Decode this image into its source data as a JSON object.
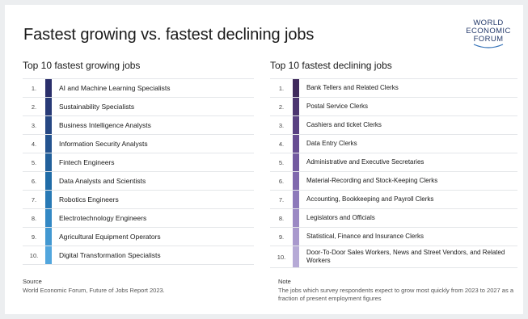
{
  "title": "Fastest growing vs. fastest declining jobs",
  "logo": {
    "line1": "WORLD",
    "line2": "ECONOMIC",
    "line3": "FORUM"
  },
  "growing": {
    "heading": "Top 10 fastest growing jobs",
    "items": [
      {
        "rank": "1.",
        "label": "AI and Machine Learning Specialists",
        "color": "#2b2f6b"
      },
      {
        "rank": "2.",
        "label": "Sustainability Specialists",
        "color": "#283a77"
      },
      {
        "rank": "3.",
        "label": "Business Intelligence Analysts",
        "color": "#264783"
      },
      {
        "rank": "4.",
        "label": "Information Security Analysts",
        "color": "#24538f"
      },
      {
        "rank": "5.",
        "label": "Fintech Engineers",
        "color": "#22609b"
      },
      {
        "rank": "6.",
        "label": "Data Analysts and Scientists",
        "color": "#206ca7"
      },
      {
        "rank": "7.",
        "label": "Robotics Engineers",
        "color": "#2879b5"
      },
      {
        "rank": "8.",
        "label": "Electrotechnology Engineers",
        "color": "#3388c4"
      },
      {
        "rank": "9.",
        "label": "Agricultural Equipment Operators",
        "color": "#4298d1"
      },
      {
        "rank": "10.",
        "label": "Digital Transformation Specialists",
        "color": "#52a6dd"
      }
    ]
  },
  "declining": {
    "heading": "Top 10 fastest declining jobs",
    "items": [
      {
        "rank": "1.",
        "label": "Bank Tellers and Related Clerks",
        "color": "#3f2a5c"
      },
      {
        "rank": "2.",
        "label": "Postal Service Clerks",
        "color": "#4c3570"
      },
      {
        "rank": "3.",
        "label": "Cashiers and ticket Clerks",
        "color": "#594182"
      },
      {
        "rank": "4.",
        "label": "Data Entry Clerks",
        "color": "#674d92"
      },
      {
        "rank": "5.",
        "label": "Administrative and Executive Secretaries",
        "color": "#735aa0"
      },
      {
        "rank": "6.",
        "label": "Material-Recording and Stock-Keeping Clerks",
        "color": "#8069ae"
      },
      {
        "rank": "7.",
        "label": "Accounting, Bookkeeping and Payroll Clerks",
        "color": "#8d79ba"
      },
      {
        "rank": "8.",
        "label": "Legislators and Officials",
        "color": "#9b89c4"
      },
      {
        "rank": "9.",
        "label": "Statistical, Finance and Insurance Clerks",
        "color": "#a999cd"
      },
      {
        "rank": "10.",
        "label": "Door-To-Door Sales Workers, News and Street Vendors, and Related Workers",
        "color": "#b6aad6"
      }
    ]
  },
  "source": {
    "heading": "Source",
    "text": "World Economic Forum, Future of Jobs Report 2023."
  },
  "note": {
    "heading": "Note",
    "text": "The jobs which survey respondents expect to grow most quickly from 2023 to 2027 as a fraction of present employment figures"
  }
}
